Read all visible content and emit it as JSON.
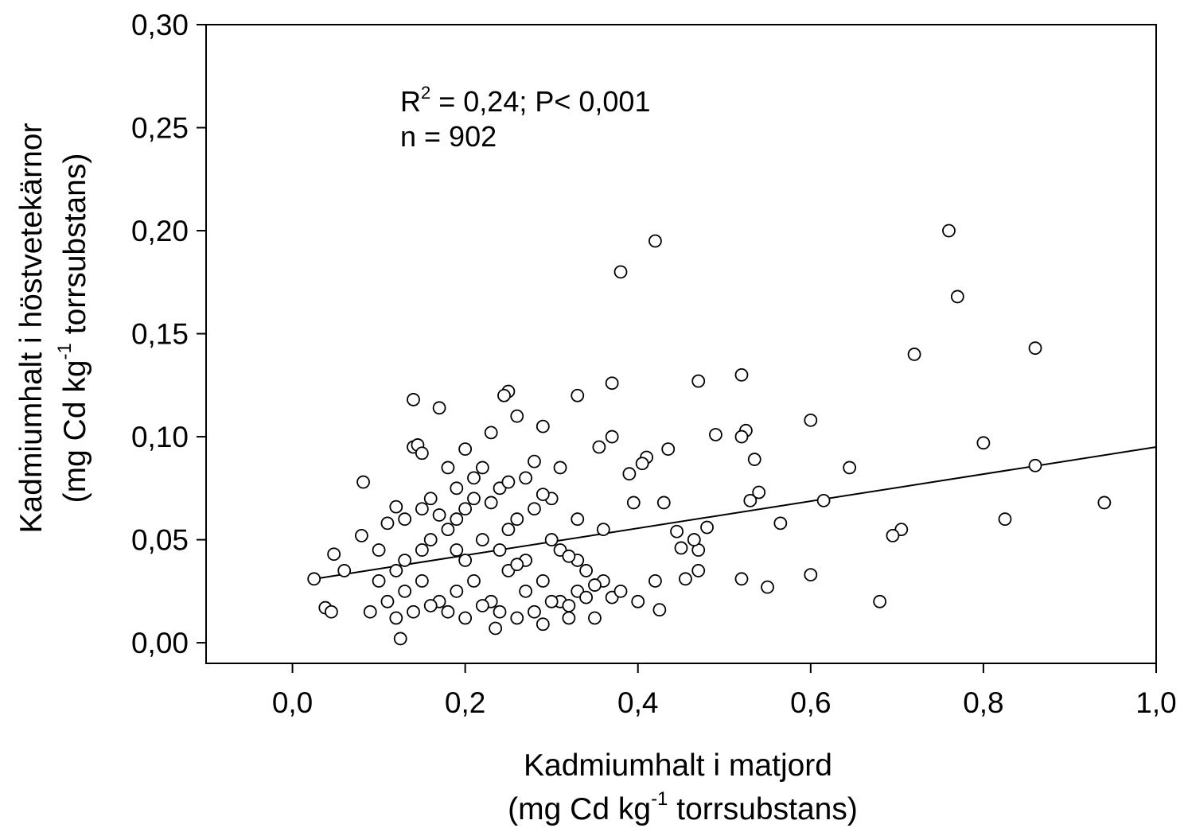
{
  "chart_data": {
    "type": "scatter",
    "x_label": {
      "text": "Kadmiumhalt i matjord",
      "line2": "(mg Cd kg",
      "sup": "-1",
      "tail": " torrsubstans)"
    },
    "y_label": {
      "text": "Kadmiumhalt i höstvetekärnor",
      "line2": "(mg Cd kg",
      "sup": "-1",
      "tail": " torrsubstans)"
    },
    "annotation": {
      "r": "R",
      "sup": "2",
      "rest": " = 0,24; P< 0,001",
      "n": "n = 902"
    },
    "xlim": [
      -0.1,
      1.0
    ],
    "ylim": [
      -0.01,
      0.3
    ],
    "xticks": [
      {
        "value": 0.0,
        "label": "0,0"
      },
      {
        "value": 0.2,
        "label": "0,2"
      },
      {
        "value": 0.4,
        "label": "0,4"
      },
      {
        "value": 0.6,
        "label": "0,6"
      },
      {
        "value": 0.8,
        "label": "0,8"
      },
      {
        "value": 1.0,
        "label": "1,0"
      }
    ],
    "yticks": [
      {
        "value": 0.0,
        "label": "0,00"
      },
      {
        "value": 0.05,
        "label": "0,05"
      },
      {
        "value": 0.1,
        "label": "0,10"
      },
      {
        "value": 0.15,
        "label": "0,15"
      },
      {
        "value": 0.2,
        "label": "0,20"
      },
      {
        "value": 0.25,
        "label": "0,25"
      },
      {
        "value": 0.3,
        "label": "0,30"
      }
    ],
    "series": [
      {
        "color": "#ffffff",
        "x": [
          0.42,
          0.38,
          0.76,
          0.77,
          0.72,
          0.86,
          0.47,
          0.52,
          0.37,
          0.33,
          0.25,
          0.245,
          0.14,
          0.17,
          0.26,
          0.29,
          0.6,
          0.525,
          0.49,
          0.52,
          0.23,
          0.37,
          0.8,
          0.86,
          0.645,
          0.435,
          0.355,
          0.94,
          0.825,
          0.705,
          0.695,
          0.68,
          0.6,
          0.615,
          0.565,
          0.55,
          0.52,
          0.53,
          0.54,
          0.535,
          0.47,
          0.48,
          0.465,
          0.455,
          0.445,
          0.45,
          0.425,
          0.41,
          0.405,
          0.39,
          0.395,
          0.43,
          0.47,
          0.42,
          0.4,
          0.025,
          0.038,
          0.045,
          0.048,
          0.06,
          0.082,
          0.14,
          0.145,
          0.15,
          0.2,
          0.125,
          0.235,
          0.29,
          0.32,
          0.35,
          0.1,
          0.12,
          0.13,
          0.15,
          0.16,
          0.18,
          0.19,
          0.2,
          0.21,
          0.22,
          0.24,
          0.25,
          0.26,
          0.27,
          0.28,
          0.3,
          0.31,
          0.33,
          0.34,
          0.36,
          0.11,
          0.13,
          0.15,
          0.17,
          0.19,
          0.21,
          0.23,
          0.25,
          0.27,
          0.29,
          0.31,
          0.33,
          0.35,
          0.37,
          0.09,
          0.12,
          0.14,
          0.16,
          0.18,
          0.2,
          0.22,
          0.24,
          0.26,
          0.28,
          0.3,
          0.32,
          0.34,
          0.38,
          0.1,
          0.13,
          0.16,
          0.19,
          0.21,
          0.24,
          0.27,
          0.3,
          0.33,
          0.36,
          0.15,
          0.18,
          0.22,
          0.25,
          0.28,
          0.31,
          0.08,
          0.11,
          0.17,
          0.23,
          0.29,
          0.2,
          0.26,
          0.32,
          0.12,
          0.19
        ],
        "y": [
          0.195,
          0.18,
          0.2,
          0.168,
          0.14,
          0.143,
          0.127,
          0.13,
          0.126,
          0.12,
          0.122,
          0.12,
          0.118,
          0.114,
          0.11,
          0.105,
          0.108,
          0.103,
          0.101,
          0.1,
          0.102,
          0.1,
          0.097,
          0.086,
          0.085,
          0.094,
          0.095,
          0.068,
          0.06,
          0.055,
          0.052,
          0.02,
          0.033,
          0.069,
          0.058,
          0.027,
          0.031,
          0.069,
          0.073,
          0.089,
          0.045,
          0.056,
          0.05,
          0.031,
          0.054,
          0.046,
          0.016,
          0.09,
          0.087,
          0.082,
          0.068,
          0.068,
          0.035,
          0.03,
          0.02,
          0.031,
          0.017,
          0.015,
          0.043,
          0.035,
          0.078,
          0.095,
          0.096,
          0.092,
          0.094,
          0.002,
          0.007,
          0.009,
          0.012,
          0.012,
          0.03,
          0.035,
          0.04,
          0.045,
          0.05,
          0.055,
          0.06,
          0.065,
          0.07,
          0.05,
          0.045,
          0.055,
          0.06,
          0.04,
          0.065,
          0.05,
          0.045,
          0.04,
          0.035,
          0.03,
          0.02,
          0.025,
          0.03,
          0.02,
          0.025,
          0.03,
          0.02,
          0.035,
          0.025,
          0.03,
          0.02,
          0.025,
          0.028,
          0.022,
          0.015,
          0.012,
          0.015,
          0.018,
          0.015,
          0.012,
          0.018,
          0.015,
          0.012,
          0.015,
          0.02,
          0.018,
          0.022,
          0.025,
          0.045,
          0.06,
          0.07,
          0.075,
          0.08,
          0.075,
          0.08,
          0.07,
          0.06,
          0.055,
          0.065,
          0.085,
          0.085,
          0.078,
          0.088,
          0.085,
          0.052,
          0.058,
          0.062,
          0.068,
          0.072,
          0.04,
          0.038,
          0.042,
          0.066,
          0.045
        ]
      }
    ],
    "trendline": {
      "color": "#000000",
      "x": [
        0.026,
        1.0
      ],
      "y": [
        0.031,
        0.095
      ]
    }
  }
}
